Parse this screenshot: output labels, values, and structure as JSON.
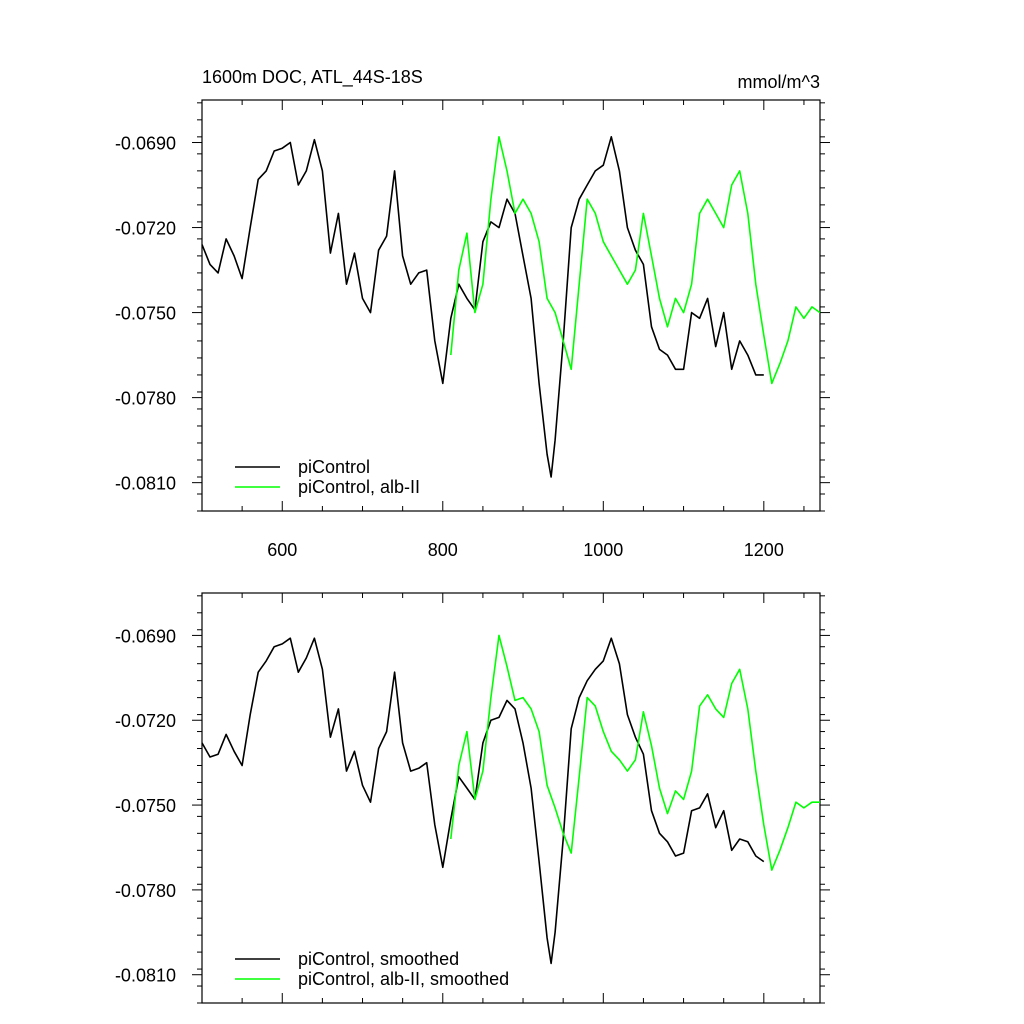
{
  "chart_data": [
    {
      "type": "line",
      "title": "1600m DOC, ATL_44S-18S",
      "units": "mmol/m^3",
      "xlim": [
        500,
        1270
      ],
      "ylim": [
        -0.082,
        -0.0675
      ],
      "x_ticks": [
        600,
        800,
        1000,
        1200
      ],
      "x_tick_labels": [
        "600",
        "800",
        "1000",
        "1200"
      ],
      "y_ticks": [
        -0.069,
        -0.072,
        -0.075,
        -0.078,
        -0.081
      ],
      "y_tick_labels": [
        "-0.0690",
        "-0.0720",
        "-0.0750",
        "-0.0780",
        "-0.0810"
      ],
      "grid": false,
      "legend_position": "bottom-left",
      "series": [
        {
          "name": "piControl",
          "color": "#000000",
          "x": [
            500,
            510,
            520,
            530,
            540,
            550,
            560,
            570,
            580,
            590,
            600,
            610,
            620,
            630,
            640,
            650,
            660,
            670,
            680,
            690,
            700,
            710,
            720,
            730,
            740,
            750,
            760,
            770,
            780,
            790,
            800,
            810,
            820,
            830,
            840,
            850,
            860,
            870,
            880,
            890,
            900,
            910,
            920,
            930,
            935,
            940,
            950,
            960,
            970,
            980,
            990,
            1000,
            1010,
            1020,
            1030,
            1040,
            1050,
            1060,
            1070,
            1080,
            1090,
            1100,
            1110,
            1120,
            1130,
            1140,
            1150,
            1160,
            1170,
            1180,
            1190,
            1200
          ],
          "values": [
            -0.0726,
            -0.0733,
            -0.0736,
            -0.0724,
            -0.073,
            -0.0738,
            -0.072,
            -0.0703,
            -0.07,
            -0.0693,
            -0.0692,
            -0.069,
            -0.0705,
            -0.07,
            -0.0689,
            -0.07,
            -0.0729,
            -0.0715,
            -0.074,
            -0.0729,
            -0.0745,
            -0.075,
            -0.0728,
            -0.0723,
            -0.07,
            -0.073,
            -0.074,
            -0.0736,
            -0.0735,
            -0.076,
            -0.0775,
            -0.0752,
            -0.074,
            -0.0745,
            -0.0749,
            -0.0725,
            -0.0718,
            -0.072,
            -0.071,
            -0.0715,
            -0.073,
            -0.0745,
            -0.0775,
            -0.08,
            -0.0808,
            -0.0795,
            -0.076,
            -0.072,
            -0.071,
            -0.0705,
            -0.07,
            -0.0698,
            -0.0688,
            -0.07,
            -0.072,
            -0.0728,
            -0.0733,
            -0.0755,
            -0.0763,
            -0.0765,
            -0.077,
            -0.077,
            -0.075,
            -0.0752,
            -0.0745,
            -0.0762,
            -0.075,
            -0.077,
            -0.076,
            -0.0765,
            -0.0772,
            -0.0772
          ]
        },
        {
          "name": "piControl, alb-II",
          "color": "#00ff00",
          "x": [
            810,
            820,
            830,
            840,
            850,
            860,
            870,
            880,
            890,
            900,
            910,
            920,
            930,
            940,
            950,
            960,
            970,
            980,
            990,
            1000,
            1010,
            1020,
            1030,
            1040,
            1050,
            1060,
            1070,
            1080,
            1090,
            1100,
            1110,
            1120,
            1130,
            1140,
            1150,
            1160,
            1170,
            1180,
            1190,
            1200,
            1210,
            1220,
            1230,
            1240,
            1250,
            1260,
            1270
          ],
          "values": [
            -0.0765,
            -0.0735,
            -0.0722,
            -0.075,
            -0.074,
            -0.071,
            -0.0688,
            -0.07,
            -0.0715,
            -0.071,
            -0.0715,
            -0.0725,
            -0.0745,
            -0.075,
            -0.076,
            -0.077,
            -0.074,
            -0.071,
            -0.0715,
            -0.0725,
            -0.073,
            -0.0735,
            -0.074,
            -0.0735,
            -0.0715,
            -0.073,
            -0.0745,
            -0.0755,
            -0.0745,
            -0.075,
            -0.074,
            -0.0715,
            -0.071,
            -0.0715,
            -0.072,
            -0.0705,
            -0.07,
            -0.0715,
            -0.074,
            -0.0758,
            -0.0775,
            -0.0768,
            -0.076,
            -0.0748,
            -0.0752,
            -0.0748,
            -0.075
          ]
        }
      ],
      "legend": {
        "entries": [
          "piControl",
          "piControl, alb-II"
        ]
      }
    },
    {
      "type": "line",
      "xlim": [
        500,
        1270
      ],
      "ylim": [
        -0.082,
        -0.0675
      ],
      "x_ticks": [
        600,
        800,
        1000,
        1200
      ],
      "y_ticks": [
        -0.069,
        -0.072,
        -0.075,
        -0.078,
        -0.081
      ],
      "y_tick_labels": [
        "-0.0690",
        "-0.0720",
        "-0.0750",
        "-0.0780",
        "-0.0810"
      ],
      "grid": false,
      "legend_position": "bottom-left",
      "series": [
        {
          "name": "piControl, smoothed",
          "color": "#000000",
          "x": [
            500,
            510,
            520,
            530,
            540,
            550,
            560,
            570,
            580,
            590,
            600,
            610,
            620,
            630,
            640,
            650,
            660,
            670,
            680,
            690,
            700,
            710,
            720,
            730,
            740,
            750,
            760,
            770,
            780,
            790,
            800,
            810,
            820,
            830,
            840,
            850,
            860,
            870,
            880,
            890,
            900,
            910,
            920,
            930,
            935,
            940,
            950,
            960,
            970,
            980,
            990,
            1000,
            1010,
            1020,
            1030,
            1040,
            1050,
            1060,
            1070,
            1080,
            1090,
            1100,
            1110,
            1120,
            1130,
            1140,
            1150,
            1160,
            1170,
            1180,
            1190,
            1200
          ],
          "values": [
            -0.0728,
            -0.0733,
            -0.0732,
            -0.0725,
            -0.0731,
            -0.0736,
            -0.0718,
            -0.0703,
            -0.0699,
            -0.0694,
            -0.0693,
            -0.0691,
            -0.0703,
            -0.0698,
            -0.0691,
            -0.0702,
            -0.0726,
            -0.0716,
            -0.0738,
            -0.0731,
            -0.0743,
            -0.0749,
            -0.073,
            -0.0724,
            -0.0703,
            -0.0728,
            -0.0738,
            -0.0737,
            -0.0735,
            -0.0757,
            -0.0772,
            -0.0755,
            -0.074,
            -0.0744,
            -0.0748,
            -0.0728,
            -0.072,
            -0.0719,
            -0.0713,
            -0.0716,
            -0.0728,
            -0.0744,
            -0.077,
            -0.0797,
            -0.0806,
            -0.0795,
            -0.0762,
            -0.0723,
            -0.0712,
            -0.0706,
            -0.0702,
            -0.0699,
            -0.0691,
            -0.07,
            -0.0718,
            -0.0726,
            -0.0732,
            -0.0752,
            -0.076,
            -0.0763,
            -0.0768,
            -0.0767,
            -0.0752,
            -0.0751,
            -0.0746,
            -0.0758,
            -0.0752,
            -0.0766,
            -0.0762,
            -0.0763,
            -0.0768,
            -0.077
          ]
        },
        {
          "name": "piControl, alb-II, smoothed",
          "color": "#00ff00",
          "x": [
            810,
            820,
            830,
            840,
            850,
            860,
            870,
            880,
            890,
            900,
            910,
            920,
            930,
            940,
            950,
            960,
            970,
            980,
            990,
            1000,
            1010,
            1020,
            1030,
            1040,
            1050,
            1060,
            1070,
            1080,
            1090,
            1100,
            1110,
            1120,
            1130,
            1140,
            1150,
            1160,
            1170,
            1180,
            1190,
            1200,
            1210,
            1220,
            1230,
            1240,
            1250,
            1260,
            1270
          ],
          "values": [
            -0.0762,
            -0.0736,
            -0.0724,
            -0.0748,
            -0.0738,
            -0.0712,
            -0.069,
            -0.0701,
            -0.0713,
            -0.0712,
            -0.0716,
            -0.0724,
            -0.0743,
            -0.0751,
            -0.076,
            -0.0767,
            -0.074,
            -0.0712,
            -0.0715,
            -0.0724,
            -0.0731,
            -0.0734,
            -0.0738,
            -0.0734,
            -0.0717,
            -0.0729,
            -0.0744,
            -0.0753,
            -0.0745,
            -0.0748,
            -0.0738,
            -0.0715,
            -0.0711,
            -0.0716,
            -0.0719,
            -0.0707,
            -0.0702,
            -0.0716,
            -0.0738,
            -0.0757,
            -0.0773,
            -0.0766,
            -0.0758,
            -0.0749,
            -0.0751,
            -0.0749,
            -0.0749
          ]
        }
      ],
      "legend": {
        "entries": [
          "piControl, smoothed",
          "piControl, alb-II, smoothed"
        ]
      }
    }
  ]
}
